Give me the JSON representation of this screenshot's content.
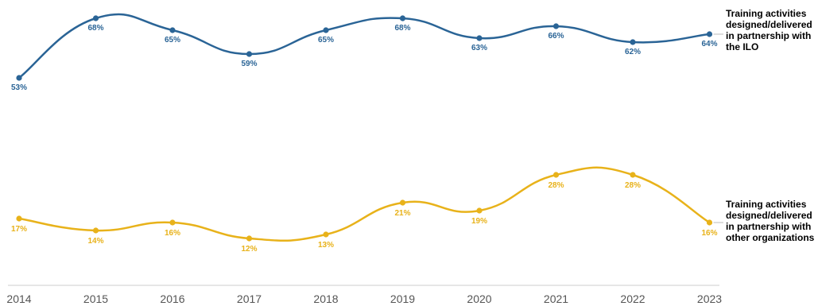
{
  "chart_data": {
    "type": "line",
    "x": [
      "2014",
      "2015",
      "2016",
      "2017",
      "2018",
      "2019",
      "2020",
      "2021",
      "2022",
      "2023"
    ],
    "series": [
      {
        "name": "Training activities designed/delivered in partnership with the ILO",
        "color": "#2a6496",
        "values": [
          53,
          68,
          65,
          59,
          65,
          68,
          63,
          66,
          62,
          64
        ],
        "labels": [
          "53%",
          "68%",
          "65%",
          "59%",
          "65%",
          "68%",
          "63%",
          "66%",
          "62%",
          "64%"
        ]
      },
      {
        "name": "Training activities designed/delivered in partnership with other organizations",
        "color": "#e8b21a",
        "values": [
          17,
          14,
          16,
          12,
          13,
          21,
          19,
          28,
          28,
          16
        ],
        "labels": [
          "17%",
          "14%",
          "16%",
          "12%",
          "13%",
          "21%",
          "19%",
          "28%",
          "28%",
          "16%"
        ]
      }
    ],
    "title": "",
    "xlabel": "",
    "ylabel": "",
    "grid": false,
    "legend": "right"
  }
}
